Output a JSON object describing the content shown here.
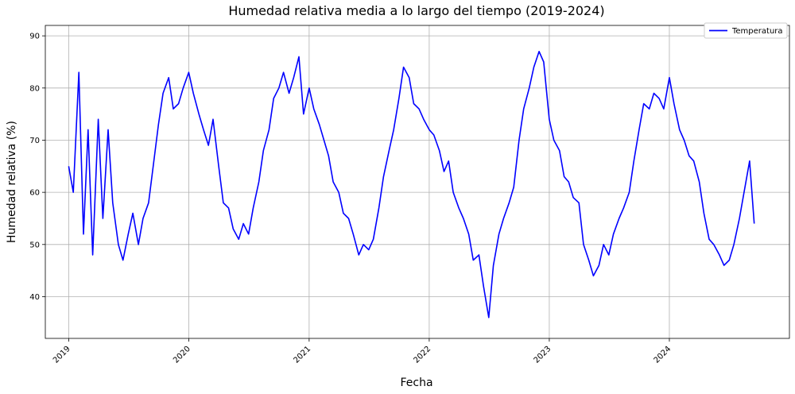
{
  "chart_data": {
    "type": "line",
    "title": "Humedad relativa media a lo largo del tiempo (2019-2024)",
    "xlabel": "Fecha",
    "ylabel": "Humedad relativa (%)",
    "xlim": [
      "2018-10-22",
      "2024-12-31"
    ],
    "ylim": [
      32,
      92
    ],
    "x_tick_labels": [
      "2019",
      "2020",
      "2021",
      "2022",
      "2023",
      "2024"
    ],
    "y_tick_values": [
      40,
      50,
      60,
      70,
      80,
      90
    ],
    "grid": true,
    "legend_position": "top-right",
    "series": [
      {
        "name": "Temperatura",
        "color": "#0000ff",
        "x": [
          "2019-01-01",
          "2019-01-15",
          "2019-02-01",
          "2019-02-15",
          "2019-03-01",
          "2019-03-15",
          "2019-04-01",
          "2019-04-15",
          "2019-05-01",
          "2019-05-15",
          "2019-06-01",
          "2019-06-15",
          "2019-07-01",
          "2019-07-15",
          "2019-08-01",
          "2019-08-15",
          "2019-09-01",
          "2019-09-15",
          "2019-10-01",
          "2019-10-15",
          "2019-11-01",
          "2019-11-15",
          "2019-12-01",
          "2019-12-15",
          "2020-01-01",
          "2020-01-15",
          "2020-02-01",
          "2020-02-15",
          "2020-03-01",
          "2020-03-15",
          "2020-04-01",
          "2020-04-15",
          "2020-05-01",
          "2020-05-15",
          "2020-06-01",
          "2020-06-15",
          "2020-07-01",
          "2020-07-15",
          "2020-08-01",
          "2020-08-15",
          "2020-09-01",
          "2020-09-15",
          "2020-10-01",
          "2020-10-15",
          "2020-11-01",
          "2020-11-15",
          "2020-12-01",
          "2020-12-15",
          "2021-01-01",
          "2021-01-15",
          "2021-02-01",
          "2021-02-15",
          "2021-03-01",
          "2021-03-15",
          "2021-04-01",
          "2021-04-15",
          "2021-05-01",
          "2021-05-15",
          "2021-06-01",
          "2021-06-15",
          "2021-07-01",
          "2021-07-15",
          "2021-08-01",
          "2021-08-15",
          "2021-09-01",
          "2021-09-15",
          "2021-10-01",
          "2021-10-15",
          "2021-11-01",
          "2021-11-15",
          "2021-12-01",
          "2021-12-15",
          "2022-01-01",
          "2022-01-15",
          "2022-02-01",
          "2022-02-15",
          "2022-03-01",
          "2022-03-15",
          "2022-04-01",
          "2022-04-15",
          "2022-05-01",
          "2022-05-15",
          "2022-06-01",
          "2022-06-15",
          "2022-07-01",
          "2022-07-15",
          "2022-08-01",
          "2022-08-15",
          "2022-09-01",
          "2022-09-15",
          "2022-10-01",
          "2022-10-15",
          "2022-11-01",
          "2022-11-15",
          "2022-12-01",
          "2022-12-15",
          "2023-01-01",
          "2023-01-15",
          "2023-02-01",
          "2023-02-15",
          "2023-03-01",
          "2023-03-15",
          "2023-04-01",
          "2023-04-15",
          "2023-05-01",
          "2023-05-15",
          "2023-06-01",
          "2023-06-15",
          "2023-07-01",
          "2023-07-15",
          "2023-08-01",
          "2023-08-15",
          "2023-09-01",
          "2023-09-15",
          "2023-10-01",
          "2023-10-15",
          "2023-11-01",
          "2023-11-15",
          "2023-12-01",
          "2023-12-15",
          "2024-01-01",
          "2024-01-15",
          "2024-02-01",
          "2024-02-15",
          "2024-03-01",
          "2024-03-15",
          "2024-04-01",
          "2024-04-15",
          "2024-05-01",
          "2024-05-15",
          "2024-06-01",
          "2024-06-15",
          "2024-07-01",
          "2024-07-15",
          "2024-08-01",
          "2024-08-15",
          "2024-09-01",
          "2024-09-15"
        ],
        "y": [
          65,
          60,
          83,
          52,
          72,
          48,
          74,
          55,
          72,
          58,
          50,
          47,
          52,
          56,
          50,
          55,
          58,
          65,
          73,
          79,
          82,
          76,
          77,
          80,
          83,
          79,
          75,
          72,
          69,
          74,
          65,
          58,
          57,
          53,
          51,
          54,
          52,
          57,
          62,
          68,
          72,
          78,
          80,
          83,
          79,
          82,
          86,
          75,
          80,
          76,
          73,
          70,
          67,
          62,
          60,
          56,
          55,
          52,
          48,
          50,
          49,
          51,
          57,
          63,
          68,
          72,
          78,
          84,
          82,
          77,
          76,
          74,
          72,
          71,
          68,
          64,
          66,
          60,
          57,
          55,
          52,
          47,
          48,
          42,
          36,
          46,
          52,
          55,
          58,
          61,
          70,
          76,
          80,
          84,
          87,
          85,
          74,
          70,
          68,
          63,
          62,
          59,
          58,
          50,
          47,
          44,
          46,
          50,
          48,
          52,
          55,
          57,
          60,
          66,
          72,
          77,
          76,
          79,
          78,
          76,
          82,
          77,
          72,
          70,
          67,
          66,
          62,
          56,
          51,
          50,
          48,
          46,
          47,
          50,
          55,
          60,
          66,
          54
        ]
      }
    ]
  }
}
